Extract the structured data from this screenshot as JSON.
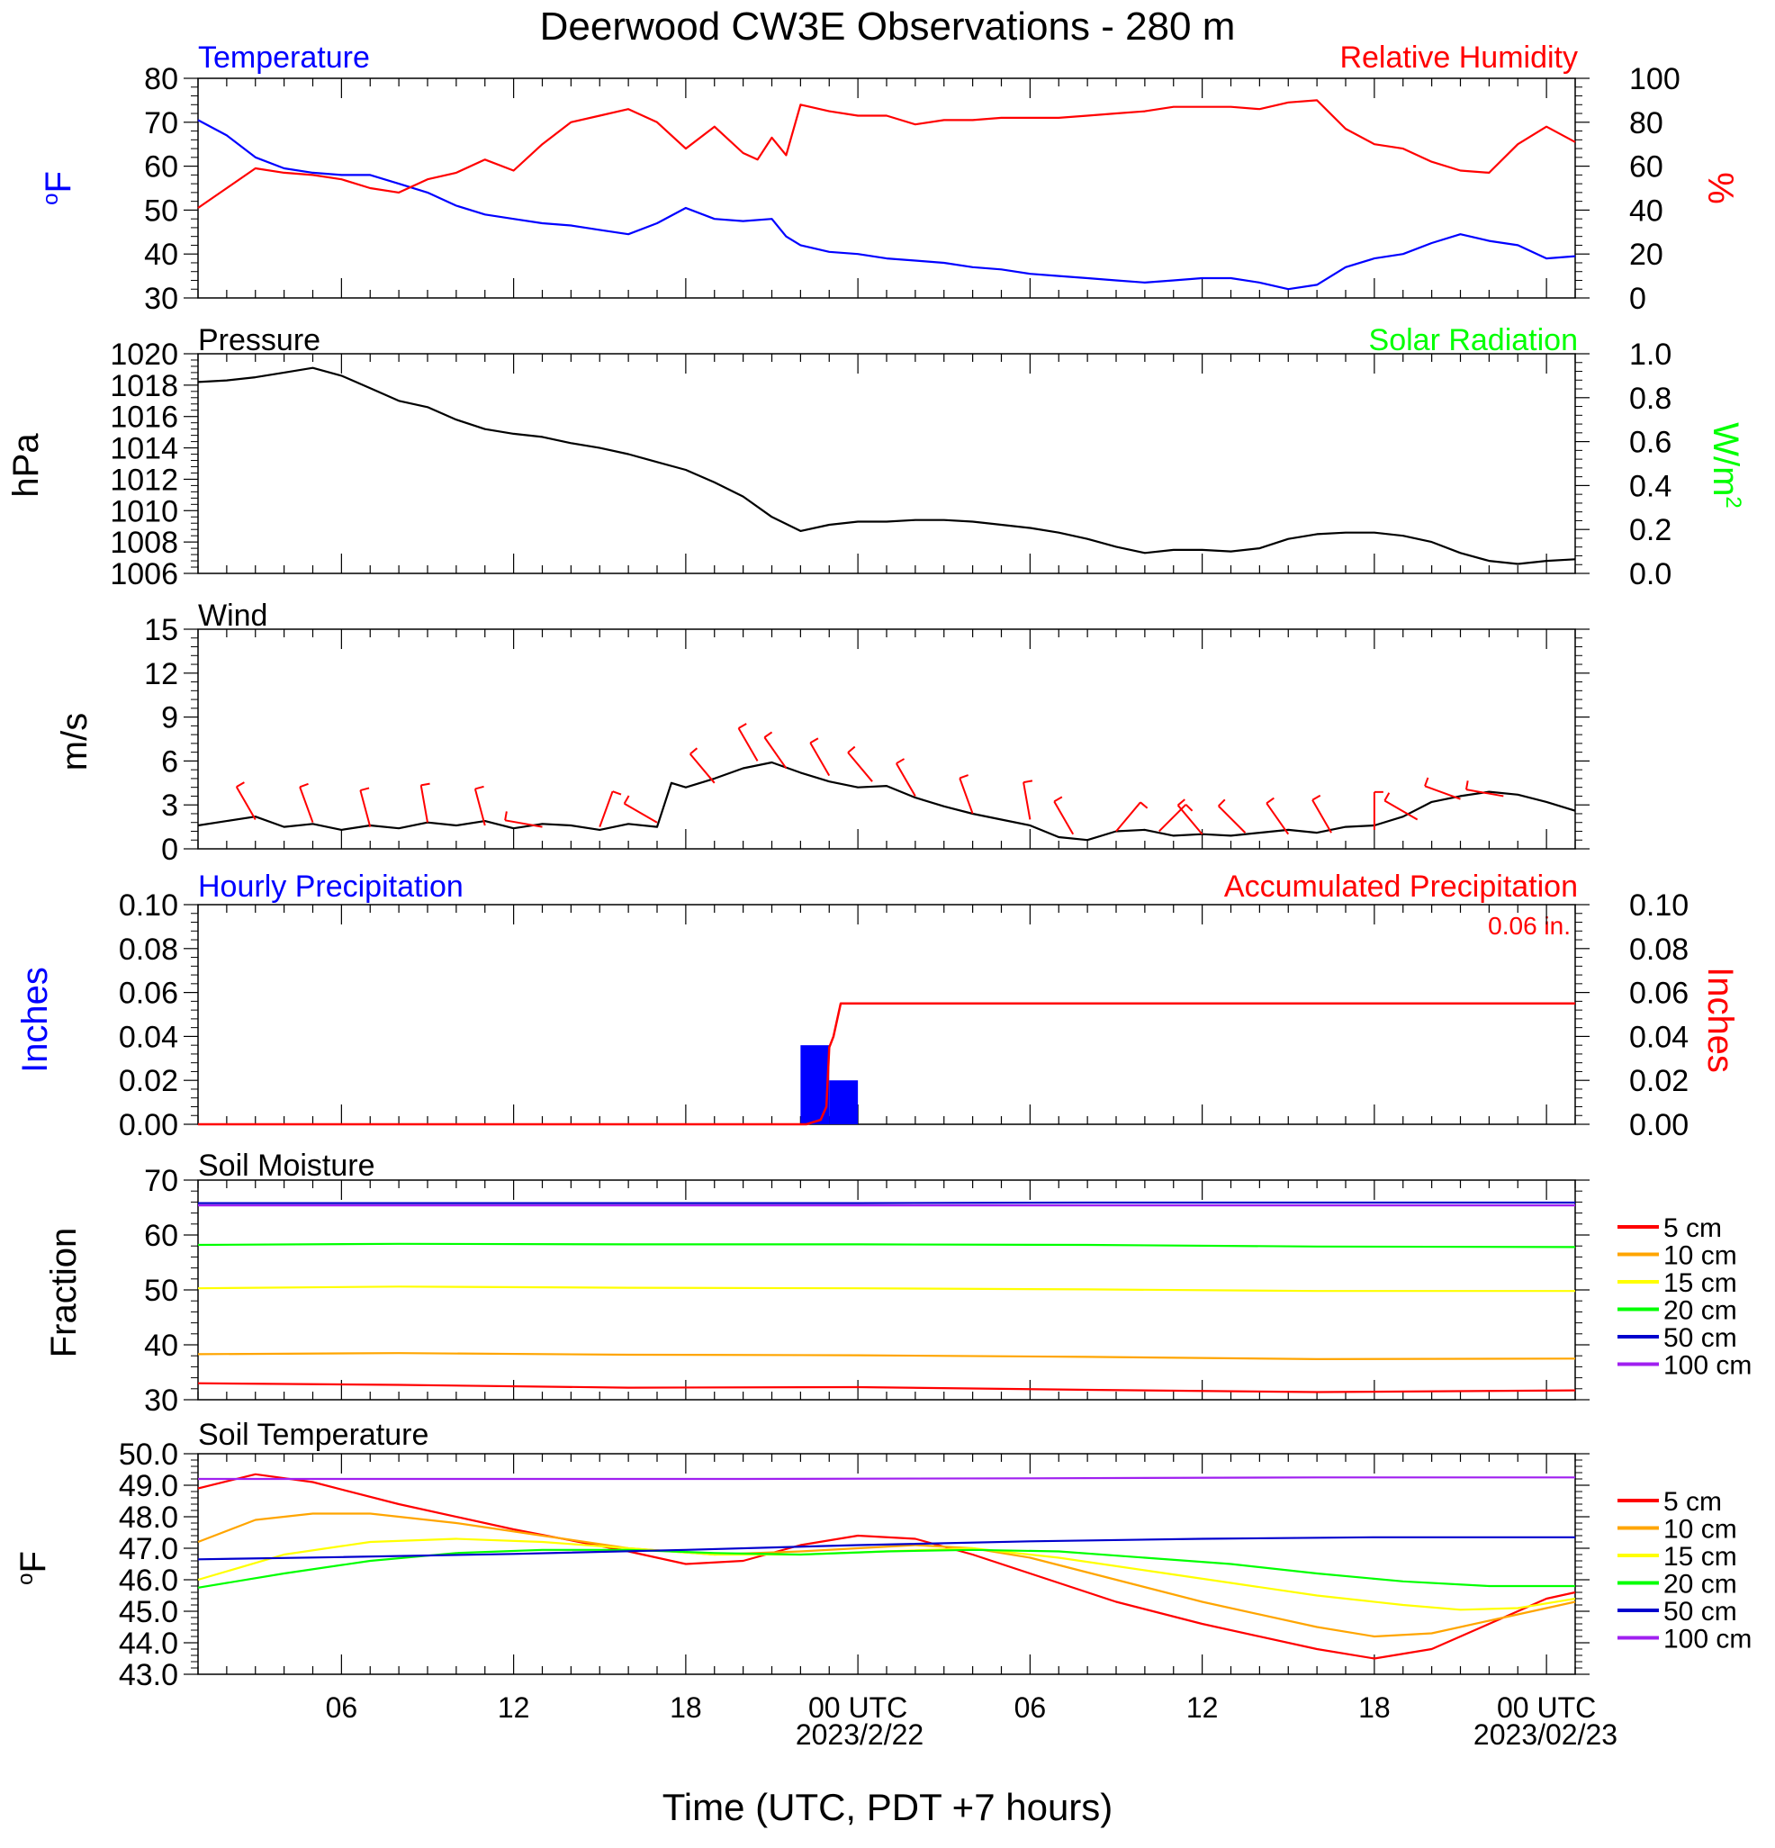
{
  "title": "Deerwood CW3E Observations - 280 m",
  "x_axis": {
    "title": "Time (UTC, PDT +7 hours)",
    "ticks": [
      "06",
      "12",
      "18",
      "00 UTC",
      "06",
      "12",
      "18",
      "00 UTC"
    ],
    "tick_hours": [
      6,
      12,
      18,
      24,
      30,
      36,
      42,
      48
    ],
    "date_labels": [
      "2023/2/22",
      "2023/02/23"
    ],
    "range_hours": [
      1,
      49
    ]
  },
  "colors": {
    "blue": "#0000ff",
    "red": "#ff0000",
    "green": "#00ff00",
    "black": "#000000",
    "orange": "#ffa500",
    "yellow": "#ffff00",
    "darkblue": "#0000cd",
    "purple": "#a020f0"
  },
  "chart_data": [
    {
      "type": "line",
      "id": "temp_rh",
      "left_title": "Temperature",
      "right_title": "Relative Humidity",
      "left_unit": "oF",
      "right_unit": "%",
      "left_ylim": [
        30,
        80
      ],
      "left_ticks": [
        "30",
        "40",
        "50",
        "60",
        "70",
        "80"
      ],
      "right_ylim": [
        0,
        100
      ],
      "right_ticks": [
        "0",
        "20",
        "40",
        "60",
        "80",
        "100"
      ],
      "series": [
        {
          "axis": "left",
          "color": "#0000ff",
          "x": [
            1,
            2,
            3,
            4,
            5,
            6,
            7,
            8,
            9,
            10,
            11,
            12,
            13,
            14,
            15,
            16,
            17,
            18,
            19,
            20,
            21,
            21.5,
            22,
            23,
            24,
            25,
            26,
            27,
            28,
            29,
            30,
            31,
            32,
            33,
            34,
            35,
            36,
            37,
            38,
            39,
            40,
            41,
            42,
            43,
            44,
            45,
            46,
            47,
            48,
            49
          ],
          "y": [
            70.5,
            67,
            62,
            59.5,
            58.5,
            58,
            58,
            56,
            54,
            51,
            49,
            48,
            47,
            46.5,
            45.5,
            44.5,
            47,
            50.5,
            48,
            47.5,
            48,
            44,
            42,
            40.5,
            40,
            39,
            38.5,
            38,
            37,
            36.5,
            35.5,
            35,
            34.5,
            34,
            33.5,
            34,
            34.5,
            34.5,
            33.5,
            32,
            33,
            37,
            39,
            40,
            42.5,
            44.5,
            43,
            42,
            39,
            39.5
          ]
        },
        {
          "axis": "right",
          "color": "#ff0000",
          "x": [
            1,
            2,
            3,
            4,
            5,
            6,
            7,
            8,
            9,
            10,
            11,
            12,
            13,
            14,
            15,
            16,
            17,
            18,
            19,
            20,
            20.5,
            21,
            21.5,
            22,
            23,
            24,
            25,
            26,
            27,
            28,
            29,
            30,
            31,
            32,
            33,
            34,
            35,
            36,
            37,
            38,
            39,
            40,
            41,
            42,
            43,
            44,
            45,
            46,
            47,
            48,
            49
          ],
          "y": [
            41,
            50,
            59,
            57,
            56,
            54,
            50,
            48,
            54,
            57,
            63,
            58,
            70,
            80,
            83,
            86,
            80,
            68,
            78,
            66,
            63,
            73,
            65,
            88,
            85,
            83,
            83,
            79,
            81,
            81,
            82,
            82,
            82,
            83,
            84,
            85,
            87,
            87,
            87,
            86,
            89,
            90,
            77,
            70,
            68,
            62,
            58,
            57,
            70,
            78,
            71
          ]
        }
      ]
    },
    {
      "type": "line",
      "id": "pressure",
      "left_title": "Pressure",
      "right_title": "Solar Radiation",
      "left_unit": "hPa",
      "right_unit": "W/m2",
      "left_ylim": [
        1006,
        1020
      ],
      "left_ticks": [
        "1006",
        "1008",
        "1010",
        "1012",
        "1014",
        "1016",
        "1018",
        "1020"
      ],
      "right_ylim": [
        0,
        1
      ],
      "right_ticks": [
        "0.0",
        "0.2",
        "0.4",
        "0.6",
        "0.8",
        "1.0"
      ],
      "series": [
        {
          "axis": "left",
          "color": "#000000",
          "x": [
            1,
            2,
            3,
            4,
            5,
            6,
            7,
            8,
            9,
            10,
            11,
            12,
            13,
            14,
            15,
            16,
            17,
            18,
            19,
            20,
            21,
            22,
            23,
            24,
            25,
            26,
            27,
            28,
            29,
            30,
            31,
            32,
            33,
            34,
            35,
            36,
            37,
            38,
            39,
            40,
            41,
            42,
            43,
            44,
            45,
            46,
            47,
            48,
            49
          ],
          "y": [
            1018.2,
            1018.3,
            1018.5,
            1018.8,
            1019.1,
            1018.6,
            1017.8,
            1017,
            1016.6,
            1015.8,
            1015.2,
            1014.9,
            1014.7,
            1014.3,
            1014,
            1013.6,
            1013.1,
            1012.6,
            1011.8,
            1010.9,
            1009.6,
            1008.7,
            1009.1,
            1009.3,
            1009.3,
            1009.4,
            1009.4,
            1009.3,
            1009.1,
            1008.9,
            1008.6,
            1008.2,
            1007.7,
            1007.3,
            1007.5,
            1007.5,
            1007.4,
            1007.6,
            1008.2,
            1008.5,
            1008.6,
            1008.6,
            1008.4,
            1008,
            1007.3,
            1006.8,
            1006.6,
            1006.8,
            1006.9
          ]
        }
      ]
    },
    {
      "type": "line",
      "id": "wind",
      "left_title": "Wind",
      "left_unit": "m/s",
      "left_ylim": [
        0,
        15
      ],
      "left_ticks": [
        "0",
        "3",
        "6",
        "9",
        "12",
        "15"
      ],
      "series": [
        {
          "axis": "left",
          "color": "#000000",
          "x": [
            1,
            2,
            3,
            4,
            5,
            6,
            7,
            8,
            9,
            10,
            11,
            12,
            13,
            14,
            15,
            16,
            17,
            17.5,
            18,
            19,
            20,
            21,
            22,
            23,
            24,
            25,
            26,
            27,
            28,
            29,
            30,
            31,
            32,
            33,
            34,
            35,
            36,
            37,
            38,
            39,
            40,
            41,
            42,
            43,
            44,
            45,
            46,
            47,
            48,
            49
          ],
          "y": [
            1.6,
            1.9,
            2.2,
            1.5,
            1.7,
            1.3,
            1.6,
            1.4,
            1.8,
            1.6,
            1.9,
            1.4,
            1.7,
            1.6,
            1.3,
            1.7,
            1.5,
            4.5,
            4.2,
            4.8,
            5.5,
            5.9,
            5.2,
            4.6,
            4.2,
            4.3,
            3.5,
            2.9,
            2.4,
            2,
            1.6,
            0.8,
            0.6,
            1.2,
            1.3,
            0.9,
            1,
            0.9,
            1.1,
            1.3,
            1.1,
            1.5,
            1.6,
            2.2,
            3.2,
            3.6,
            3.9,
            3.7,
            3.2,
            2.6
          ]
        },
        {
          "axis": "barb",
          "color": "#ff0000",
          "x": [
            3,
            5,
            7,
            9,
            11,
            13,
            15,
            17,
            19,
            20.5,
            21.5,
            23,
            24.5,
            26,
            28,
            30,
            31.5,
            33,
            34.5,
            36,
            37.5,
            39,
            40.5,
            42,
            43.5,
            45,
            46.5
          ],
          "y": [
            2,
            1.8,
            1.5,
            1.8,
            1.6,
            1.5,
            1.5,
            1.8,
            4.5,
            6,
            5.5,
            5,
            4.6,
            3.6,
            2.4,
            2,
            1,
            1.2,
            1.2,
            1,
            1.1,
            1,
            1.1,
            1.3,
            2,
            3.4,
            3.6
          ],
          "dir_deg": [
            330,
            340,
            345,
            350,
            345,
            280,
            20,
            300,
            320,
            330,
            325,
            330,
            320,
            330,
            340,
            350,
            330,
            40,
            45,
            320,
            315,
            325,
            330,
            0,
            300,
            290,
            280
          ]
        }
      ]
    },
    {
      "type": "bar",
      "id": "precip",
      "left_title": "Hourly Precipitation",
      "right_title": "Accumulated Precipitation",
      "accum_label": "0.06 in.",
      "left_unit": "Inches",
      "right_unit": "Inches",
      "left_ylim": [
        0,
        0.1
      ],
      "left_ticks": [
        "0.00",
        "0.02",
        "0.04",
        "0.06",
        "0.08",
        "0.10"
      ],
      "right_ylim": [
        0,
        0.1
      ],
      "right_ticks": [
        "0.00",
        "0.02",
        "0.04",
        "0.06",
        "0.08",
        "0.10"
      ],
      "bars": {
        "color": "#0000ff",
        "start_hours": [
          22,
          23
        ],
        "values": [
          0.036,
          0.02
        ]
      },
      "series": [
        {
          "axis": "right",
          "color": "#ff0000",
          "x": [
            1,
            22.2,
            22.7,
            22.9,
            23.0,
            23.15,
            23.4,
            49
          ],
          "y": [
            0,
            0,
            0.002,
            0.008,
            0.035,
            0.04,
            0.055,
            0.055
          ]
        }
      ]
    },
    {
      "type": "line",
      "id": "soil_moisture",
      "left_title": "Soil Moisture",
      "left_unit": "Fraction",
      "left_ylim": [
        30,
        70
      ],
      "left_ticks": [
        "30",
        "40",
        "50",
        "60",
        "70"
      ],
      "legend": [
        "5 cm",
        "10 cm",
        "15 cm",
        "20 cm",
        "50 cm",
        "100 cm"
      ],
      "legend_colors": [
        "#ff0000",
        "#ffa500",
        "#ffff00",
        "#00ff00",
        "#0000cd",
        "#a020f0"
      ],
      "series": [
        {
          "color": "#ff0000",
          "x": [
            1,
            8,
            16,
            24,
            32,
            40,
            49
          ],
          "y": [
            33,
            32.7,
            32.2,
            32.3,
            31.8,
            31.4,
            31.7
          ]
        },
        {
          "color": "#ffa500",
          "x": [
            1,
            8,
            16,
            24,
            32,
            40,
            49
          ],
          "y": [
            38.3,
            38.5,
            38.2,
            38.1,
            37.8,
            37.4,
            37.5
          ]
        },
        {
          "color": "#ffff00",
          "x": [
            1,
            8,
            16,
            24,
            32,
            40,
            49
          ],
          "y": [
            50.3,
            50.6,
            50.4,
            50.3,
            50.1,
            49.8,
            49.8
          ]
        },
        {
          "color": "#00ff00",
          "x": [
            1,
            8,
            16,
            24,
            32,
            40,
            49
          ],
          "y": [
            58.2,
            58.4,
            58.3,
            58.3,
            58.2,
            57.9,
            57.8
          ]
        },
        {
          "color": "#0000cd",
          "x": [
            1,
            8,
            16,
            24,
            32,
            40,
            49
          ],
          "y": [
            65.8,
            65.8,
            65.8,
            65.8,
            65.9,
            65.9,
            65.9
          ]
        },
        {
          "color": "#a020f0",
          "x": [
            1,
            8,
            16,
            24,
            32,
            40,
            49
          ],
          "y": [
            65.4,
            65.4,
            65.4,
            65.4,
            65.4,
            65.4,
            65.4
          ]
        }
      ]
    },
    {
      "type": "line",
      "id": "soil_temp",
      "left_title": "Soil Temperature",
      "left_unit": "oF",
      "left_ylim": [
        43,
        50
      ],
      "left_ticks": [
        "43.0",
        "44.0",
        "45.0",
        "46.0",
        "47.0",
        "48.0",
        "49.0",
        "50.0"
      ],
      "legend": [
        "5 cm",
        "10 cm",
        "15 cm",
        "20 cm",
        "50 cm",
        "100 cm"
      ],
      "legend_colors": [
        "#ff0000",
        "#ffa500",
        "#ffff00",
        "#00ff00",
        "#0000cd",
        "#a020f0"
      ],
      "series": [
        {
          "color": "#ff0000",
          "x": [
            1,
            3,
            5,
            8,
            12,
            16,
            18,
            20,
            22,
            24,
            26,
            28,
            30,
            33,
            36,
            40,
            42,
            44,
            46,
            48,
            49
          ],
          "y": [
            48.9,
            49.35,
            49.1,
            48.4,
            47.6,
            46.9,
            46.5,
            46.6,
            47.1,
            47.4,
            47.3,
            46.8,
            46.2,
            45.3,
            44.6,
            43.8,
            43.5,
            43.8,
            44.6,
            45.4,
            45.6
          ]
        },
        {
          "color": "#ffa500",
          "x": [
            1,
            3,
            5,
            7,
            10,
            13,
            16,
            19,
            22,
            24,
            26,
            28,
            30,
            33,
            36,
            40,
            42,
            44,
            46,
            49
          ],
          "y": [
            47.2,
            47.9,
            48.1,
            48.1,
            47.8,
            47.4,
            47.0,
            46.8,
            46.9,
            47.0,
            47.1,
            47.0,
            46.7,
            46.0,
            45.3,
            44.5,
            44.2,
            44.3,
            44.7,
            45.3
          ]
        },
        {
          "color": "#ffff00",
          "x": [
            1,
            4,
            7,
            10,
            13,
            16,
            19,
            22,
            25,
            28,
            31,
            34,
            37,
            40,
            43,
            45,
            47,
            49
          ],
          "y": [
            46.0,
            46.8,
            47.2,
            47.3,
            47.2,
            47.0,
            46.8,
            46.8,
            46.9,
            47.0,
            46.7,
            46.3,
            45.9,
            45.5,
            45.2,
            45.05,
            45.1,
            45.4
          ]
        },
        {
          "color": "#00ff00",
          "x": [
            1,
            4,
            7,
            10,
            13,
            16,
            19,
            22,
            25,
            28,
            31,
            34,
            37,
            40,
            43,
            46,
            49
          ],
          "y": [
            45.75,
            46.2,
            46.6,
            46.85,
            46.95,
            46.95,
            46.85,
            46.8,
            46.9,
            46.95,
            46.9,
            46.7,
            46.5,
            46.2,
            45.95,
            45.8,
            45.8
          ]
        },
        {
          "color": "#0000cd",
          "x": [
            1,
            6,
            12,
            18,
            24,
            30,
            36,
            42,
            49
          ],
          "y": [
            46.65,
            46.72,
            46.82,
            46.95,
            47.1,
            47.22,
            47.3,
            47.35,
            47.35
          ]
        },
        {
          "color": "#a020f0",
          "x": [
            1,
            10,
            20,
            30,
            40,
            49
          ],
          "y": [
            49.2,
            49.2,
            49.2,
            49.22,
            49.25,
            49.25
          ]
        }
      ]
    }
  ]
}
